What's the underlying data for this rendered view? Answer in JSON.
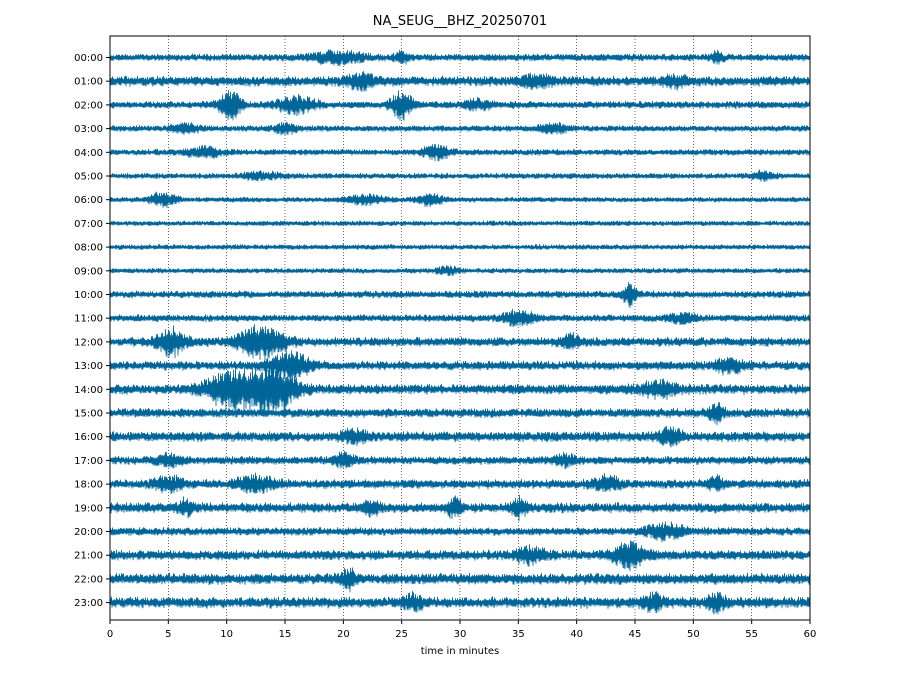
{
  "chart_data": {
    "type": "line",
    "title": "NA_SEUG__BHZ_20250701",
    "xlabel": "time in minutes",
    "ylabel": "",
    "xlim": [
      0,
      60
    ],
    "x_ticks": [
      "0",
      "5",
      "10",
      "15",
      "20",
      "25",
      "30",
      "35",
      "40",
      "45",
      "50",
      "55",
      "60"
    ],
    "grid": "vertical dotted lines at each 5-minute tick",
    "line_color": "#00669a",
    "hours": [
      "00:00",
      "01:00",
      "02:00",
      "03:00",
      "04:00",
      "05:00",
      "06:00",
      "07:00",
      "08:00",
      "09:00",
      "10:00",
      "11:00",
      "12:00",
      "13:00",
      "14:00",
      "15:00",
      "16:00",
      "17:00",
      "18:00",
      "19:00",
      "20:00",
      "21:00",
      "22:00",
      "23:00"
    ],
    "rows": [
      {
        "hour": "00:00",
        "noise": 0.14,
        "events": [
          {
            "t": 19.5,
            "amp": 0.25,
            "dur": 4
          },
          {
            "t": 25.0,
            "amp": 0.2,
            "dur": 1
          },
          {
            "t": 52.0,
            "amp": 0.25,
            "dur": 0.8
          }
        ]
      },
      {
        "hour": "01:00",
        "noise": 0.2,
        "events": [
          {
            "t": 21.5,
            "amp": 0.3,
            "dur": 2
          },
          {
            "t": 36.5,
            "amp": 0.25,
            "dur": 2
          },
          {
            "t": 48.5,
            "amp": 0.2,
            "dur": 2
          }
        ]
      },
      {
        "hour": "02:00",
        "noise": 0.14,
        "events": [
          {
            "t": 10.3,
            "amp": 0.6,
            "dur": 1.5
          },
          {
            "t": 16.0,
            "amp": 0.35,
            "dur": 3
          },
          {
            "t": 25.0,
            "amp": 0.6,
            "dur": 1.5
          },
          {
            "t": 31.5,
            "amp": 0.2,
            "dur": 2
          }
        ]
      },
      {
        "hour": "03:00",
        "noise": 0.12,
        "events": [
          {
            "t": 6.5,
            "amp": 0.2,
            "dur": 2
          },
          {
            "t": 15.0,
            "amp": 0.2,
            "dur": 1.5
          },
          {
            "t": 38.0,
            "amp": 0.2,
            "dur": 2
          }
        ]
      },
      {
        "hour": "04:00",
        "noise": 0.12,
        "events": [
          {
            "t": 8.0,
            "amp": 0.2,
            "dur": 3
          },
          {
            "t": 28.0,
            "amp": 0.3,
            "dur": 2
          }
        ]
      },
      {
        "hour": "05:00",
        "noise": 0.11,
        "events": [
          {
            "t": 13.0,
            "amp": 0.15,
            "dur": 3
          },
          {
            "t": 56.0,
            "amp": 0.2,
            "dur": 1.5
          }
        ]
      },
      {
        "hour": "06:00",
        "noise": 0.1,
        "events": [
          {
            "t": 4.5,
            "amp": 0.3,
            "dur": 2
          },
          {
            "t": 22.0,
            "amp": 0.2,
            "dur": 3
          },
          {
            "t": 27.5,
            "amp": 0.25,
            "dur": 2
          }
        ]
      },
      {
        "hour": "07:00",
        "noise": 0.1,
        "events": []
      },
      {
        "hour": "08:00",
        "noise": 0.1,
        "events": []
      },
      {
        "hour": "09:00",
        "noise": 0.1,
        "events": [
          {
            "t": 29.0,
            "amp": 0.15,
            "dur": 1.5
          }
        ]
      },
      {
        "hour": "10:00",
        "noise": 0.14,
        "events": [
          {
            "t": 44.5,
            "amp": 0.45,
            "dur": 0.8
          }
        ]
      },
      {
        "hour": "11:00",
        "noise": 0.14,
        "events": [
          {
            "t": 35.0,
            "amp": 0.3,
            "dur": 2.5
          },
          {
            "t": 49.0,
            "amp": 0.2,
            "dur": 2
          }
        ]
      },
      {
        "hour": "12:00",
        "noise": 0.18,
        "events": [
          {
            "t": 5.3,
            "amp": 0.6,
            "dur": 2
          },
          {
            "t": 13.0,
            "amp": 0.7,
            "dur": 3.5
          },
          {
            "t": 39.5,
            "amp": 0.25,
            "dur": 1.5
          }
        ]
      },
      {
        "hour": "13:00",
        "noise": 0.18,
        "events": [
          {
            "t": 15.5,
            "amp": 0.55,
            "dur": 3
          },
          {
            "t": 53.0,
            "amp": 0.3,
            "dur": 2
          }
        ]
      },
      {
        "hour": "14:00",
        "noise": 0.2,
        "events": [
          {
            "t": 10.5,
            "amp": 0.8,
            "dur": 4
          },
          {
            "t": 14.0,
            "amp": 1.0,
            "dur": 3.5
          },
          {
            "t": 47.0,
            "amp": 0.3,
            "dur": 3
          }
        ]
      },
      {
        "hour": "15:00",
        "noise": 0.18,
        "events": [
          {
            "t": 52.0,
            "amp": 0.35,
            "dur": 1
          }
        ]
      },
      {
        "hour": "16:00",
        "noise": 0.2,
        "events": [
          {
            "t": 21.0,
            "amp": 0.25,
            "dur": 2
          },
          {
            "t": 48.0,
            "amp": 0.35,
            "dur": 1.5
          }
        ]
      },
      {
        "hour": "17:00",
        "noise": 0.16,
        "events": [
          {
            "t": 5.0,
            "amp": 0.2,
            "dur": 2
          },
          {
            "t": 20.0,
            "amp": 0.25,
            "dur": 1.5
          },
          {
            "t": 39.0,
            "amp": 0.2,
            "dur": 2
          }
        ]
      },
      {
        "hour": "18:00",
        "noise": 0.18,
        "events": [
          {
            "t": 5.0,
            "amp": 0.3,
            "dur": 2
          },
          {
            "t": 12.5,
            "amp": 0.3,
            "dur": 3
          },
          {
            "t": 42.5,
            "amp": 0.3,
            "dur": 2
          },
          {
            "t": 52.0,
            "amp": 0.3,
            "dur": 1
          }
        ]
      },
      {
        "hour": "19:00",
        "noise": 0.2,
        "events": [
          {
            "t": 6.5,
            "amp": 0.3,
            "dur": 1
          },
          {
            "t": 22.5,
            "amp": 0.25,
            "dur": 1
          },
          {
            "t": 29.5,
            "amp": 0.5,
            "dur": 0.8
          },
          {
            "t": 35.0,
            "amp": 0.4,
            "dur": 1
          }
        ]
      },
      {
        "hour": "20:00",
        "noise": 0.16,
        "events": [
          {
            "t": 47.5,
            "amp": 0.3,
            "dur": 3
          }
        ]
      },
      {
        "hour": "21:00",
        "noise": 0.2,
        "events": [
          {
            "t": 44.5,
            "amp": 0.5,
            "dur": 2.5
          },
          {
            "t": 36.0,
            "amp": 0.3,
            "dur": 2
          }
        ]
      },
      {
        "hour": "22:00",
        "noise": 0.22,
        "events": [
          {
            "t": 20.5,
            "amp": 0.35,
            "dur": 1
          }
        ]
      },
      {
        "hour": "23:00",
        "noise": 0.22,
        "events": [
          {
            "t": 26.0,
            "amp": 0.3,
            "dur": 1.5
          },
          {
            "t": 46.5,
            "amp": 0.3,
            "dur": 1.5
          },
          {
            "t": 52.0,
            "amp": 0.35,
            "dur": 1
          }
        ]
      }
    ]
  }
}
